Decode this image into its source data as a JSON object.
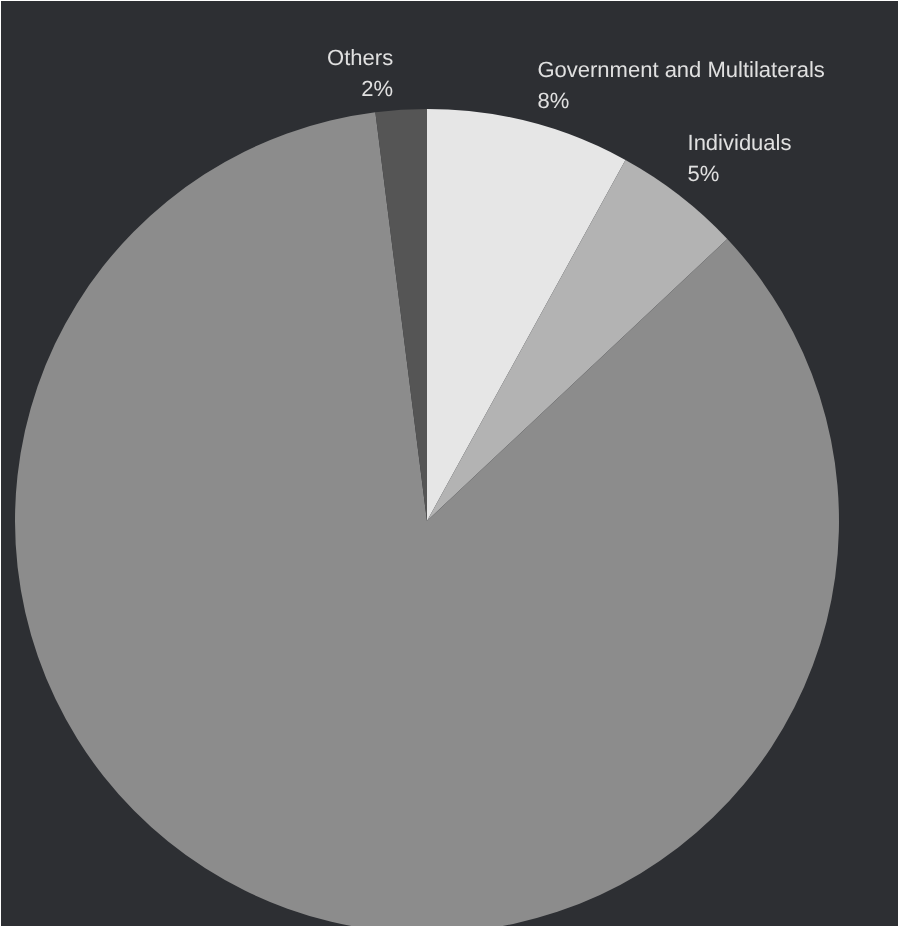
{
  "chart_data": {
    "type": "pie",
    "categories": [
      "Government and Multilaterals",
      "Individuals",
      null,
      "Others"
    ],
    "values": [
      8,
      5,
      85,
      2
    ],
    "colors": [
      "#e6e6e6",
      "#b3b3b3",
      "#8c8c8c",
      "#555555"
    ],
    "value_labels": [
      "8%",
      "5%",
      null,
      "2%"
    ]
  }
}
